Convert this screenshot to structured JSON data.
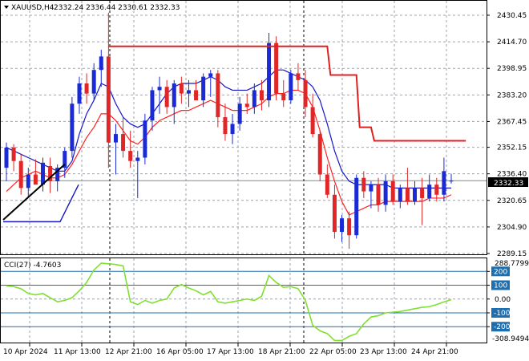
{
  "main_panel": {
    "symbol_info": "XAUUSD,H4",
    "ohlc": "2332.24 2336.44 2330.61 2332.33",
    "current_price_label": "2332.33",
    "price_ticks": [
      "2430.45",
      "2414.70",
      "2398.95",
      "2383.20",
      "2367.45",
      "2352.15",
      "2336.40",
      "2320.65",
      "2304.90",
      "2289.15"
    ]
  },
  "cci_panel": {
    "title": "CCI(27) -4.7603",
    "top_value": "288.7799",
    "bottom_value": "-308.9494",
    "level_labels": [
      "200",
      "100",
      "0.00",
      "-100",
      "-200"
    ]
  },
  "time_axis": {
    "labels": [
      "10 Apr 2024",
      "11 Apr 13:00",
      "12 Apr 21:00",
      "16 Apr 05:00",
      "17 Apr 13:00",
      "18 Apr 21:00",
      "22 Apr 05:00",
      "23 Apr 13:00",
      "24 Apr 21:00"
    ]
  },
  "colors": {
    "bull": "#1a2bd6",
    "bear": "#e02626",
    "ma_fast": "#ff2020",
    "ma_slow": "#1616c8",
    "stop_line": "#e02020",
    "cci_line": "#80e030",
    "level_box": "#1e6fb0"
  },
  "chart_data": {
    "type": "candlestick",
    "symbol": "XAUUSD",
    "timeframe": "H4",
    "candles": [
      {
        "o": 2340,
        "h": 2355,
        "l": 2332,
        "c": 2352
      },
      {
        "o": 2352,
        "h": 2354,
        "l": 2338,
        "c": 2344
      },
      {
        "o": 2344,
        "h": 2348,
        "l": 2324,
        "c": 2328
      },
      {
        "o": 2328,
        "h": 2340,
        "l": 2322,
        "c": 2336
      },
      {
        "o": 2336,
        "h": 2345,
        "l": 2330,
        "c": 2330
      },
      {
        "o": 2330,
        "h": 2346,
        "l": 2326,
        "c": 2343
      },
      {
        "o": 2341,
        "h": 2346,
        "l": 2325,
        "c": 2332
      },
      {
        "o": 2332,
        "h": 2342,
        "l": 2326,
        "c": 2340
      },
      {
        "o": 2340,
        "h": 2352,
        "l": 2334,
        "c": 2350
      },
      {
        "o": 2350,
        "h": 2382,
        "l": 2346,
        "c": 2378
      },
      {
        "o": 2378,
        "h": 2394,
        "l": 2372,
        "c": 2390
      },
      {
        "o": 2390,
        "h": 2396,
        "l": 2378,
        "c": 2384
      },
      {
        "o": 2384,
        "h": 2402,
        "l": 2380,
        "c": 2398
      },
      {
        "o": 2398,
        "h": 2410,
        "l": 2388,
        "c": 2406
      },
      {
        "o": 2406,
        "h": 2432,
        "l": 2340,
        "c": 2355
      },
      {
        "o": 2355,
        "h": 2366,
        "l": 2336,
        "c": 2360
      },
      {
        "o": 2360,
        "h": 2370,
        "l": 2346,
        "c": 2350
      },
      {
        "o": 2350,
        "h": 2362,
        "l": 2340,
        "c": 2344
      },
      {
        "o": 2344,
        "h": 2350,
        "l": 2322,
        "c": 2346
      },
      {
        "o": 2346,
        "h": 2372,
        "l": 2342,
        "c": 2368
      },
      {
        "o": 2368,
        "h": 2388,
        "l": 2362,
        "c": 2386
      },
      {
        "o": 2386,
        "h": 2394,
        "l": 2372,
        "c": 2388
      },
      {
        "o": 2388,
        "h": 2392,
        "l": 2372,
        "c": 2376
      },
      {
        "o": 2376,
        "h": 2392,
        "l": 2366,
        "c": 2390
      },
      {
        "o": 2390,
        "h": 2394,
        "l": 2378,
        "c": 2384
      },
      {
        "o": 2384,
        "h": 2392,
        "l": 2376,
        "c": 2386
      },
      {
        "o": 2386,
        "h": 2392,
        "l": 2380,
        "c": 2380
      },
      {
        "o": 2380,
        "h": 2396,
        "l": 2376,
        "c": 2394
      },
      {
        "o": 2394,
        "h": 2398,
        "l": 2382,
        "c": 2396
      },
      {
        "o": 2396,
        "h": 2398,
        "l": 2364,
        "c": 2370
      },
      {
        "o": 2370,
        "h": 2378,
        "l": 2356,
        "c": 2360
      },
      {
        "o": 2360,
        "h": 2372,
        "l": 2354,
        "c": 2366
      },
      {
        "o": 2366,
        "h": 2382,
        "l": 2362,
        "c": 2378
      },
      {
        "o": 2378,
        "h": 2384,
        "l": 2372,
        "c": 2376
      },
      {
        "o": 2376,
        "h": 2390,
        "l": 2372,
        "c": 2386
      },
      {
        "o": 2386,
        "h": 2392,
        "l": 2374,
        "c": 2380
      },
      {
        "o": 2380,
        "h": 2420,
        "l": 2376,
        "c": 2414
      },
      {
        "o": 2414,
        "h": 2418,
        "l": 2380,
        "c": 2384
      },
      {
        "o": 2384,
        "h": 2392,
        "l": 2376,
        "c": 2380
      },
      {
        "o": 2380,
        "h": 2398,
        "l": 2378,
        "c": 2396
      },
      {
        "o": 2396,
        "h": 2402,
        "l": 2386,
        "c": 2392
      },
      {
        "o": 2392,
        "h": 2398,
        "l": 2370,
        "c": 2376
      },
      {
        "o": 2376,
        "h": 2384,
        "l": 2358,
        "c": 2360
      },
      {
        "o": 2360,
        "h": 2362,
        "l": 2332,
        "c": 2336
      },
      {
        "o": 2336,
        "h": 2342,
        "l": 2322,
        "c": 2324
      },
      {
        "o": 2324,
        "h": 2330,
        "l": 2298,
        "c": 2302
      },
      {
        "o": 2302,
        "h": 2312,
        "l": 2296,
        "c": 2310
      },
      {
        "o": 2310,
        "h": 2314,
        "l": 2292,
        "c": 2300
      },
      {
        "o": 2300,
        "h": 2336,
        "l": 2298,
        "c": 2334
      },
      {
        "o": 2334,
        "h": 2338,
        "l": 2322,
        "c": 2326
      },
      {
        "o": 2326,
        "h": 2332,
        "l": 2316,
        "c": 2330
      },
      {
        "o": 2330,
        "h": 2334,
        "l": 2314,
        "c": 2318
      },
      {
        "o": 2318,
        "h": 2336,
        "l": 2314,
        "c": 2332
      },
      {
        "o": 2332,
        "h": 2336,
        "l": 2318,
        "c": 2320
      },
      {
        "o": 2320,
        "h": 2330,
        "l": 2316,
        "c": 2328
      },
      {
        "o": 2328,
        "h": 2340,
        "l": 2318,
        "c": 2320
      },
      {
        "o": 2320,
        "h": 2332,
        "l": 2318,
        "c": 2328
      },
      {
        "o": 2328,
        "h": 2334,
        "l": 2306,
        "c": 2322
      },
      {
        "o": 2322,
        "h": 2336,
        "l": 2320,
        "c": 2330
      },
      {
        "o": 2330,
        "h": 2334,
        "l": 2320,
        "c": 2324
      },
      {
        "o": 2324,
        "h": 2346,
        "l": 2320,
        "c": 2338
      },
      {
        "o": 2332.24,
        "h": 2336.44,
        "l": 2330.61,
        "c": 2332.33
      }
    ],
    "ma_fast": [
      2326,
      2330,
      2334,
      2336,
      2338,
      2336,
      2334,
      2334,
      2336,
      2342,
      2350,
      2358,
      2364,
      2372,
      2372,
      2368,
      2362,
      2356,
      2354,
      2358,
      2364,
      2368,
      2370,
      2372,
      2374,
      2374,
      2376,
      2378,
      2380,
      2378,
      2376,
      2374,
      2374,
      2374,
      2376,
      2378,
      2382,
      2384,
      2384,
      2386,
      2386,
      2384,
      2376,
      2362,
      2346,
      2332,
      2320,
      2312,
      2314,
      2316,
      2318,
      2318,
      2320,
      2320,
      2320,
      2320,
      2320,
      2320,
      2322,
      2322,
      2322,
      2324
    ],
    "ma_slow": [
      2352,
      2350,
      2348,
      2346,
      2344,
      2342,
      2340,
      2338,
      2338,
      2344,
      2360,
      2372,
      2380,
      2390,
      2388,
      2378,
      2370,
      2366,
      2364,
      2366,
      2372,
      2378,
      2384,
      2388,
      2390,
      2390,
      2390,
      2392,
      2394,
      2392,
      2388,
      2386,
      2386,
      2386,
      2388,
      2390,
      2394,
      2398,
      2398,
      2396,
      2394,
      2392,
      2388,
      2380,
      2366,
      2350,
      2338,
      2332,
      2330,
      2330,
      2330,
      2330,
      2330,
      2328,
      2328,
      2328,
      2328,
      2328,
      2328,
      2328,
      2328,
      2328
    ],
    "ylim": [
      2289.15,
      2436
    ],
    "cci": {
      "title": "CCI(27)",
      "last_value": -4.7603,
      "ylim": [
        -308.9494,
        288.7799
      ],
      "levels": [
        200,
        100,
        0,
        -100,
        -200
      ],
      "values": [
        95,
        90,
        75,
        40,
        30,
        40,
        10,
        -20,
        -10,
        10,
        60,
        120,
        210,
        260,
        255,
        250,
        240,
        -20,
        -40,
        -10,
        -30,
        -10,
        0,
        80,
        105,
        80,
        60,
        30,
        55,
        -20,
        -30,
        -20,
        -10,
        0,
        -10,
        20,
        170,
        120,
        85,
        90,
        75,
        -10,
        -190,
        -230,
        -250,
        -300,
        -300,
        -270,
        -250,
        -180,
        -130,
        -120,
        -100,
        -95,
        -90,
        -80,
        -70,
        -60,
        -55,
        -40,
        -20,
        -5
      ]
    },
    "stop_line": {
      "segments": [
        {
          "from_candle": 14,
          "to_candle": 44,
          "value": 2412
        },
        {
          "from_candle": 44,
          "to_candle": 48,
          "value": 2395
        },
        {
          "from_candle": 48,
          "to_candle": 50,
          "value": 2364
        },
        {
          "from_candle": 50,
          "to_candle": 63,
          "value": 2356
        }
      ]
    },
    "trendline": {
      "from": {
        "candle": 0,
        "value": 2312
      },
      "to": {
        "candle": 8,
        "value": 2342
      }
    }
  }
}
